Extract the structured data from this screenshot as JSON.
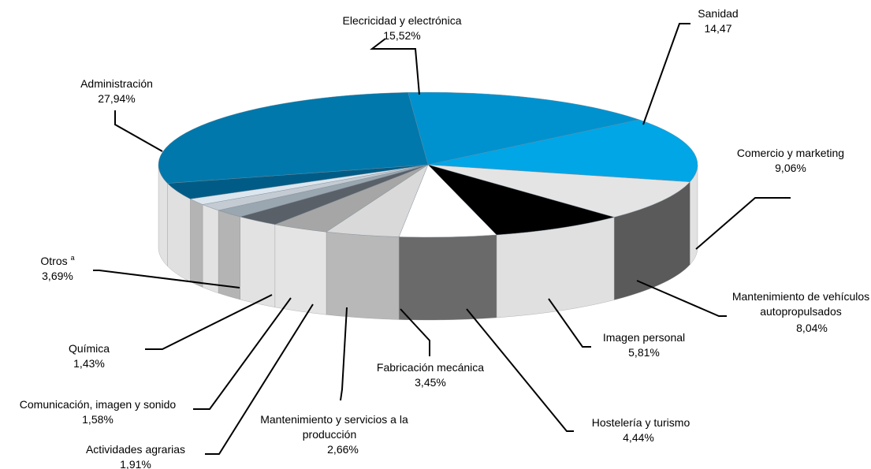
{
  "chart_data": {
    "type": "pie",
    "style": "3d",
    "slices": [
      {
        "label": "Elecricidad y electrónica",
        "value_text": "15,52%",
        "value": 15.52,
        "top_color": "#0092cf",
        "wall_color": "#e2e2e2"
      },
      {
        "label": "Sanidad",
        "value_text": "14,47",
        "value": 14.47,
        "top_color": "#00a6e6",
        "wall_color": "#e2e2e2"
      },
      {
        "label": "Comercio y marketing",
        "value_text": "9,06%",
        "value": 9.06,
        "top_color": "#e4e4e4",
        "wall_color": "#5a5a5a"
      },
      {
        "label": "Mantenimiento de vehículos autopropulsados",
        "value_text": "8,04%",
        "value": 8.04,
        "top_color": "#000000",
        "wall_color": "#e0e0e0"
      },
      {
        "label": "Imagen personal",
        "value_text": "5,81%",
        "value": 5.81,
        "top_color": "#ffffff",
        "wall_color": "#6a6a6a"
      },
      {
        "label": "Hostelería y turismo",
        "value_text": "4,44%",
        "value": 4.44,
        "top_color": "#d9d9d9",
        "wall_color": "#b8b8b8"
      },
      {
        "label": "Fabricación mecánica",
        "value_text": "3,45%",
        "value": 3.45,
        "top_color": "#a6a6a6",
        "wall_color": "#e4e4e4"
      },
      {
        "label": "Mantenimiento y servicios a la producción",
        "value_text": "2,66%",
        "value": 2.66,
        "top_color": "#5a6068",
        "wall_color": "#e2e2e2"
      },
      {
        "label": "Actividades agrarias",
        "value_text": "1,91%",
        "value": 1.91,
        "top_color": "#9aa6b0",
        "wall_color": "#b4b4b4"
      },
      {
        "label": "Comunicación, imagen y sonido",
        "value_text": "1,58%",
        "value": 1.58,
        "top_color": "#c4cbd2",
        "wall_color": "#e2e2e2"
      },
      {
        "label": "Química",
        "value_text": "1,43%",
        "value": 1.43,
        "top_color": "#dce6ee",
        "wall_color": "#b4b4b4"
      },
      {
        "label": "Otros",
        "label_sup": "a",
        "value_text": "3,69%",
        "value": 3.69,
        "top_color": "#005c86",
        "wall_color": "#e0e0e0"
      },
      {
        "label": "Administración",
        "value_text": "27,94%",
        "value": 27.94,
        "top_color": "#0078ab",
        "wall_color": "#e2e2e2"
      }
    ]
  }
}
